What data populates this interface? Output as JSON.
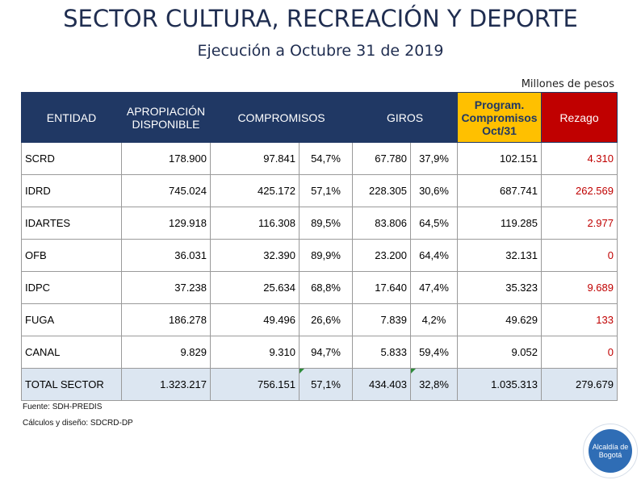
{
  "header": {
    "title": "SECTOR CULTURA, RECREACIÓN Y DEPORTE",
    "subtitle": "Ejecución a Octubre 31 de  2019",
    "units": "Millones de pesos"
  },
  "table": {
    "columns": {
      "entidad": "ENTIDAD",
      "apropiacion": "APROPIACIÓN DISPONIBLE",
      "compromisos": "COMPROMISOS",
      "giros": "GIROS",
      "program_l1": "Program.",
      "program_l2": "Compromisos",
      "program_l3": "Oct/31",
      "rezago": "Rezago"
    },
    "rows": [
      {
        "entidad": "SCRD",
        "apropiacion": "178.900",
        "compromisos": "97.841",
        "comp_pct": "54,7%",
        "giros": "67.780",
        "giros_pct": "37,9%",
        "program": "102.151",
        "rezago": "4.310"
      },
      {
        "entidad": "IDRD",
        "apropiacion": "745.024",
        "compromisos": "425.172",
        "comp_pct": "57,1%",
        "giros": "228.305",
        "giros_pct": "30,6%",
        "program": "687.741",
        "rezago": "262.569"
      },
      {
        "entidad": "IDARTES",
        "apropiacion": "129.918",
        "compromisos": "116.308",
        "comp_pct": "89,5%",
        "giros": "83.806",
        "giros_pct": "64,5%",
        "program": "119.285",
        "rezago": "2.977"
      },
      {
        "entidad": "OFB",
        "apropiacion": "36.031",
        "compromisos": "32.390",
        "comp_pct": "89,9%",
        "giros": "23.200",
        "giros_pct": "64,4%",
        "program": "32.131",
        "rezago": "0"
      },
      {
        "entidad": "IDPC",
        "apropiacion": "37.238",
        "compromisos": "25.634",
        "comp_pct": "68,8%",
        "giros": "17.640",
        "giros_pct": "47,4%",
        "program": "35.323",
        "rezago": "9.689"
      },
      {
        "entidad": "FUGA",
        "apropiacion": "186.278",
        "compromisos": "49.496",
        "comp_pct": "26,6%",
        "giros": "7.839",
        "giros_pct": "4,2%",
        "program": "49.629",
        "rezago": "133"
      },
      {
        "entidad": "CANAL",
        "apropiacion": "9.829",
        "compromisos": "9.310",
        "comp_pct": "94,7%",
        "giros": "5.833",
        "giros_pct": "59,4%",
        "program": "9.052",
        "rezago": "0"
      }
    ],
    "total": {
      "entidad": "TOTAL SECTOR",
      "apropiacion": "1.323.217",
      "compromisos": "756.151",
      "comp_pct": "57,1%",
      "giros": "434.403",
      "giros_pct": "32,8%",
      "program": "1.035.313",
      "rezago": "279.679"
    }
  },
  "footer": {
    "source": "Fuente: SDH-PREDIS",
    "calc": "Cálculos y diseño: SDCRD-DP"
  },
  "logo": {
    "line1": "Alcaldía de",
    "line2": "Bogotá"
  },
  "colors": {
    "header_blue": "#203864",
    "program_yellow": "#ffc000",
    "rezago_red": "#c00000",
    "total_row": "#dce6f1"
  }
}
